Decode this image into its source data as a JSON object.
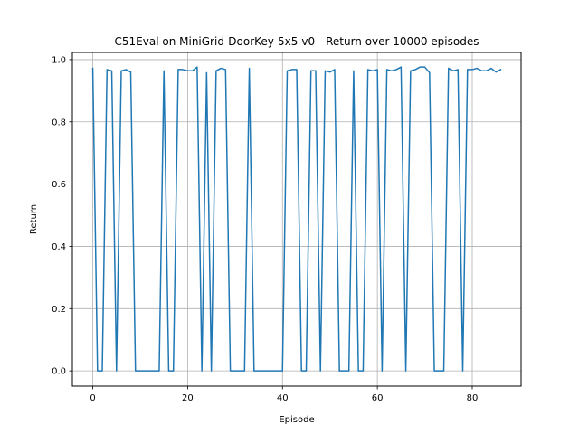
{
  "chart_data": {
    "type": "line",
    "title": "C51Eval on MiniGrid-DoorKey-5x5-v0 - Return over 10000 episodes",
    "xlabel": "Episode",
    "ylabel": "Return",
    "xlim": [
      -4.3,
      90.3
    ],
    "ylim": [
      -0.049,
      1.023
    ],
    "xticks": [
      0,
      20,
      40,
      60,
      80
    ],
    "yticks": [
      0.0,
      0.2,
      0.4,
      0.6,
      0.8,
      1.0
    ],
    "xtick_labels": [
      "0",
      "20",
      "40",
      "60",
      "80"
    ],
    "ytick_labels": [
      "0.0",
      "0.2",
      "0.4",
      "0.6",
      "0.8",
      "1.0"
    ],
    "grid": true,
    "line_color": "#1f77b4",
    "series": [
      {
        "x": [
          0,
          1,
          2,
          3,
          4,
          5,
          6,
          7,
          8,
          9,
          10,
          11,
          12,
          13,
          14,
          15,
          16,
          17,
          18,
          19,
          20,
          21,
          22,
          23,
          24,
          25,
          26,
          27,
          28,
          29,
          30,
          31,
          32,
          33,
          34,
          35,
          36,
          37,
          38,
          39,
          40,
          41,
          42,
          43,
          44,
          45,
          46,
          47,
          48,
          49,
          50,
          51,
          52,
          53,
          54,
          55,
          56,
          57,
          58,
          59,
          60,
          61,
          62,
          63,
          64,
          65,
          66,
          67,
          68,
          69,
          70,
          71,
          72,
          73,
          74,
          75,
          76,
          77,
          78,
          79,
          80,
          81,
          82,
          83,
          84,
          85,
          86
        ],
        "values": [
          0.972,
          0,
          0,
          0.968,
          0.964,
          0,
          0.964,
          0.968,
          0.96,
          0,
          0,
          0,
          0,
          0,
          0,
          0.964,
          0,
          0,
          0.968,
          0.968,
          0.964,
          0.964,
          0.976,
          0,
          0.958,
          0,
          0.964,
          0.972,
          0.968,
          0,
          0,
          0,
          0,
          0.972,
          0,
          0,
          0,
          0,
          0,
          0,
          0,
          0.964,
          0.968,
          0.968,
          0,
          0,
          0.964,
          0.964,
          0,
          0.964,
          0.96,
          0.968,
          0,
          0,
          0,
          0.964,
          0,
          0,
          0.968,
          0.964,
          0.968,
          0,
          0.968,
          0.964,
          0.968,
          0.976,
          0,
          0.964,
          0.968,
          0.976,
          0.976,
          0.958,
          0,
          0,
          0,
          0.972,
          0.964,
          0.968,
          0,
          0.968,
          0.968,
          0.972,
          0.964,
          0.964,
          0.972,
          0.96,
          0.968
        ]
      }
    ]
  }
}
